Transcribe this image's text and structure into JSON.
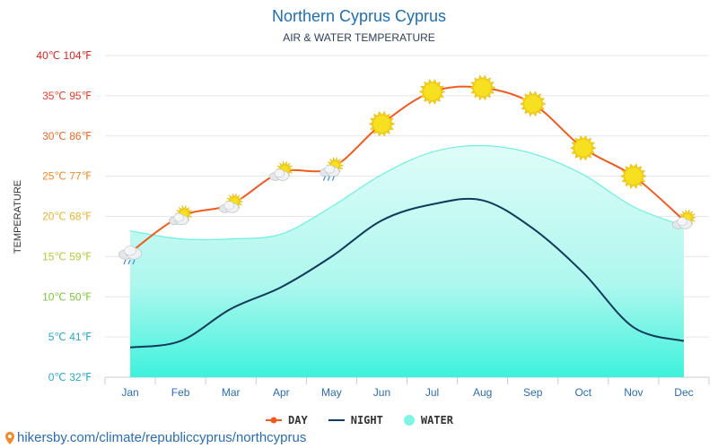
{
  "title": "Northern Cyprus Cyprus",
  "subtitle": "AIR & WATER TEMPERATURE",
  "ylabel": "TEMPERATURE",
  "source": "hikersby.com/climate/republiccyprus/northcyprus",
  "legend": {
    "day": "DAY",
    "night": "NIGHT",
    "water": "WATER"
  },
  "colors": {
    "day": "#f15a1f",
    "night": "#103a5a",
    "water": "#7ff5e6",
    "grid": "#e6e6e6",
    "month": "#2c6db3"
  },
  "chart_data": {
    "type": "line",
    "categories": [
      "Jan",
      "Feb",
      "Mar",
      "Apr",
      "May",
      "Jun",
      "Jul",
      "Aug",
      "Sep",
      "Oct",
      "Nov",
      "Dec"
    ],
    "series": [
      {
        "name": "DAY",
        "values": [
          15.5,
          20,
          21.5,
          25.5,
          26,
          31.5,
          35.5,
          36,
          34,
          28.5,
          25,
          19.5
        ]
      },
      {
        "name": "NIGHT",
        "values": [
          3.7,
          4.5,
          8.5,
          11.2,
          15,
          19.5,
          21.5,
          22,
          18.5,
          13,
          6.2,
          4.5
        ]
      },
      {
        "name": "WATER",
        "values": [
          18.2,
          17.2,
          17.2,
          17.8,
          21.2,
          25.2,
          28,
          28.8,
          27.8,
          25.2,
          21.2,
          18.8
        ]
      }
    ],
    "yticks": [
      {
        "label": "0℃ 32℉",
        "value": 0,
        "color": "#2aa7c9"
      },
      {
        "label": "5℃ 41℉",
        "value": 5,
        "color": "#2aa7c9"
      },
      {
        "label": "10℃ 50℉",
        "value": 10,
        "color": "#7fc63a"
      },
      {
        "label": "15℃ 59℉",
        "value": 15,
        "color": "#b9c93a"
      },
      {
        "label": "20℃ 68℉",
        "value": 20,
        "color": "#e8b534"
      },
      {
        "label": "25℃ 77℉",
        "value": 25,
        "color": "#f08a2a"
      },
      {
        "label": "30℃ 86℉",
        "value": 30,
        "color": "#ee6a28"
      },
      {
        "label": "35℃ 95℉",
        "value": 35,
        "color": "#e8422a"
      },
      {
        "label": "40℃ 104℉",
        "value": 40,
        "color": "#d9251f"
      }
    ],
    "ylim": [
      0,
      40
    ],
    "weather_icons": [
      "cloud-rain",
      "sun-cloud",
      "sun-cloud",
      "sun-cloud",
      "sun-cloud-rain",
      "sun",
      "sun",
      "sun",
      "sun",
      "sun",
      "sun",
      "sun-cloud"
    ],
    "grid": true,
    "legend_position": "bottom-center"
  }
}
